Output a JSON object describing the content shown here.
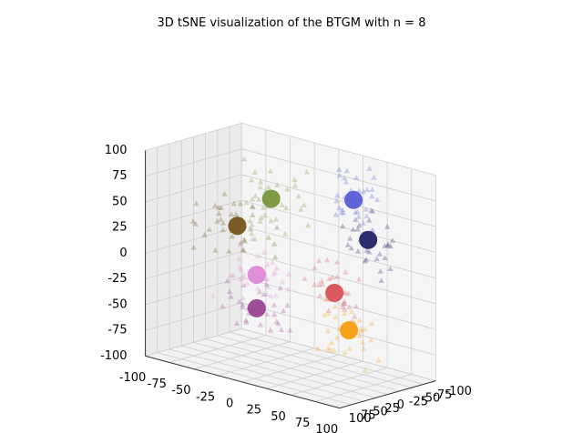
{
  "chart_data": {
    "type": "scatter",
    "title": "3D tSNE visualization of the BTGM with n = 8",
    "projection": "3d",
    "grid": true,
    "axes": {
      "x": {
        "range": [
          -100,
          100
        ],
        "ticks": [
          "-100",
          "-75",
          "-50",
          "-25",
          "0",
          "25",
          "50",
          "75",
          "100"
        ]
      },
      "y": {
        "range": [
          100,
          -100
        ],
        "ticks": [
          "100",
          "75",
          "50",
          "25",
          "0",
          "-25",
          "-50",
          "-75",
          "-100"
        ]
      },
      "z": {
        "range": [
          -100,
          100
        ],
        "ticks": [
          "-100",
          "-75",
          "-50",
          "-25",
          "0",
          "25",
          "50",
          "75",
          "100"
        ]
      }
    },
    "point_marker": "triangle",
    "center_marker": "circle",
    "centers": [
      {
        "color": "#5e63d6",
        "x": 45,
        "y": -40,
        "z": 70
      },
      {
        "color": "#2c2c6e",
        "x": 70,
        "y": -20,
        "z": 40
      },
      {
        "color": "#7f9a45",
        "x": -20,
        "y": 0,
        "z": 60
      },
      {
        "color": "#7b5c22",
        "x": -45,
        "y": 20,
        "z": 30
      },
      {
        "color": "#de8fd8",
        "x": -20,
        "y": 30,
        "z": -10
      },
      {
        "color": "#d85a5e",
        "x": 55,
        "y": 20,
        "z": -10
      },
      {
        "color": "#9e4c96",
        "x": -15,
        "y": 40,
        "z": -40
      },
      {
        "color": "#f6a31a",
        "x": 75,
        "y": 30,
        "z": -40
      }
    ],
    "clusters": [
      {
        "color": "#5e63d6",
        "x": 45,
        "y": -40,
        "z": 70,
        "spread": [
          22,
          22,
          18
        ],
        "count": 38
      },
      {
        "color": "#2c2c6e",
        "x": 70,
        "y": -20,
        "z": 40,
        "spread": [
          20,
          20,
          18
        ],
        "count": 32
      },
      {
        "color": "#7f9a45",
        "x": -20,
        "y": 0,
        "z": 60,
        "spread": [
          25,
          22,
          22
        ],
        "count": 38
      },
      {
        "color": "#7b5c22",
        "x": -45,
        "y": 20,
        "z": 30,
        "spread": [
          25,
          22,
          22
        ],
        "count": 38
      },
      {
        "color": "#de8fd8",
        "x": -20,
        "y": 30,
        "z": -10,
        "spread": [
          25,
          22,
          20
        ],
        "count": 34
      },
      {
        "color": "#d85a5e",
        "x": 55,
        "y": 20,
        "z": -10,
        "spread": [
          22,
          22,
          20
        ],
        "count": 32
      },
      {
        "color": "#9e4c96",
        "x": -15,
        "y": 40,
        "z": -40,
        "spread": [
          25,
          22,
          20
        ],
        "count": 34
      },
      {
        "color": "#f6a31a",
        "x": 75,
        "y": 30,
        "z": -40,
        "spread": [
          22,
          22,
          20
        ],
        "count": 32
      }
    ]
  }
}
